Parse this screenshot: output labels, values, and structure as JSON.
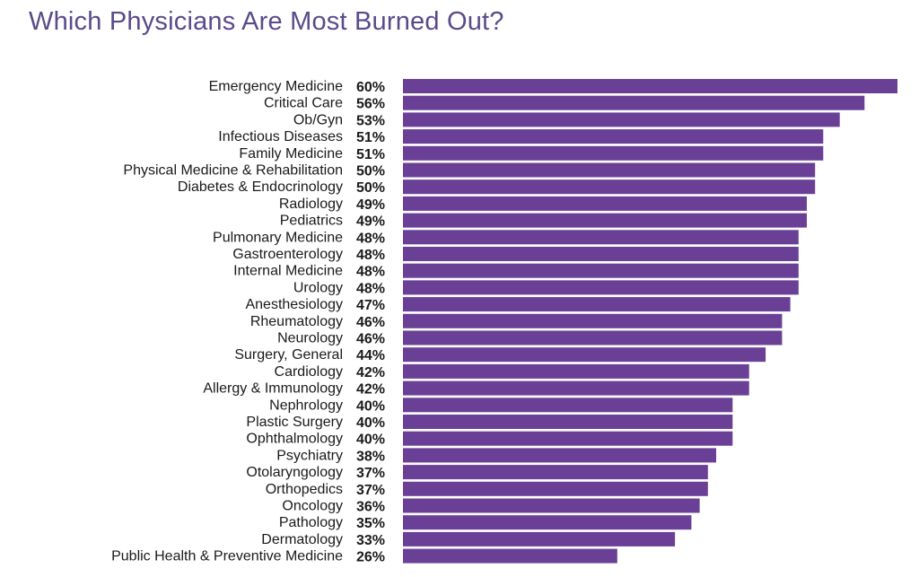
{
  "title": "Which Physicians Are Most Burned Out?",
  "chart_data": {
    "type": "bar",
    "orientation": "horizontal",
    "title": "Which Physicians Are Most Burned Out?",
    "categories": [
      "Emergency Medicine",
      "Critical Care",
      "Ob/Gyn",
      "Infectious Diseases",
      "Family Medicine",
      "Physical Medicine & Rehabilitation",
      "Diabetes & Endocrinology",
      "Radiology",
      "Pediatrics",
      "Pulmonary Medicine",
      "Gastroenterology",
      "Internal Medicine",
      "Urology",
      "Anesthesiology",
      "Rheumatology",
      "Neurology",
      "Surgery, General",
      "Cardiology",
      "Allergy & Immunology",
      "Nephrology",
      "Plastic Surgery",
      "Ophthalmology",
      "Psychiatry",
      "Otolaryngology",
      "Orthopedics",
      "Oncology",
      "Pathology",
      "Dermatology",
      "Public Health & Preventive Medicine"
    ],
    "values": [
      60,
      56,
      53,
      51,
      51,
      50,
      50,
      49,
      49,
      48,
      48,
      48,
      48,
      47,
      46,
      46,
      44,
      42,
      42,
      40,
      40,
      40,
      38,
      37,
      37,
      36,
      35,
      33,
      26
    ],
    "value_labels": [
      "60%",
      "56%",
      "53%",
      "51%",
      "51%",
      "50%",
      "50%",
      "49%",
      "49%",
      "48%",
      "48%",
      "48%",
      "48%",
      "47%",
      "46%",
      "46%",
      "44%",
      "42%",
      "42%",
      "40%",
      "40%",
      "40%",
      "38%",
      "37%",
      "37%",
      "36%",
      "35%",
      "33%",
      "26%"
    ],
    "xlim": [
      0,
      60
    ],
    "grid": false,
    "bar_color": "#6a3f96"
  }
}
